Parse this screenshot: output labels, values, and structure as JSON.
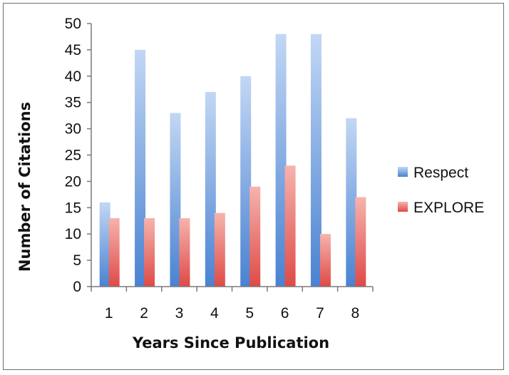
{
  "chart_data": {
    "type": "bar",
    "title": "",
    "xlabel": "Years Since Publication",
    "ylabel": "Number of Citations",
    "categories": [
      "1",
      "2",
      "3",
      "4",
      "5",
      "6",
      "7",
      "8"
    ],
    "series": [
      {
        "name": "Respect",
        "values": [
          16,
          45,
          33,
          37,
          40,
          48,
          48,
          32
        ],
        "color": "#5b8fd8"
      },
      {
        "name": "EXPLORE",
        "values": [
          13,
          13,
          13,
          14,
          19,
          23,
          10,
          17
        ],
        "color": "#e25a55"
      }
    ],
    "ylim": [
      0,
      50
    ],
    "yticks": [
      "0",
      "5",
      "10",
      "15",
      "20",
      "25",
      "30",
      "35",
      "40",
      "45",
      "50"
    ],
    "grid": false,
    "legend_position": "right"
  }
}
